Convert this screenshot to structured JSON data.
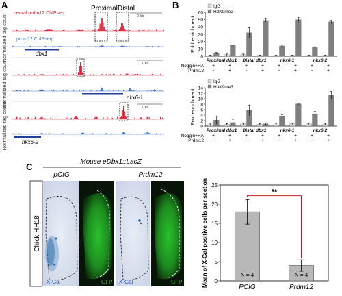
{
  "panels": {
    "A": {
      "label": "A",
      "region_labels": [
        "Proximal",
        "Distal"
      ],
      "yaxis_label": "Normalized tag count",
      "tracks": [
        {
          "legend": [
            "neural prdm12 ChIPseq",
            "prdm12 ChIPseq"
          ],
          "gene": "dbx1",
          "scale": "2 kb"
        },
        {
          "gene": "nkx6-1",
          "scale": "1 kb"
        },
        {
          "gene": "nkx6-2",
          "scale": "1 kb"
        }
      ],
      "colors": {
        "neural": "#e0243c",
        "prdm12": "#3d6fd1",
        "gene": "#203e9c"
      }
    },
    "B": {
      "label": "B",
      "chart_data": [
        {
          "type": "bar",
          "ylabel": "Fold enrichment",
          "ylim": [
            0,
            60
          ],
          "yticks": [
            0,
            10,
            20,
            30,
            40,
            50,
            60
          ],
          "legend": [
            "IgG",
            "H3K9me2"
          ],
          "groups": [
            "Proximal dbx1",
            "Distal dbx1",
            "nkx6-1",
            "nkx6-2"
          ],
          "row_labels": [
            "Noggin+RA",
            "Prdm12"
          ],
          "conditions": [
            [
              "+",
              "-"
            ],
            [
              "+",
              "+"
            ],
            [
              "+",
              "-"
            ],
            [
              "+",
              "+"
            ],
            [
              "+",
              "-"
            ],
            [
              "+",
              "+"
            ],
            [
              "+",
              "-"
            ],
            [
              "+",
              "+"
            ]
          ],
          "series": [
            {
              "name": "IgG",
              "values": [
                1,
                2,
                2,
                1,
                1,
                1,
                1,
                1
              ],
              "errors": [
                0.5,
                1,
                1,
                0.5,
                0.5,
                0.5,
                0.5,
                0.5
              ]
            },
            {
              "name": "H3K9me2",
              "values": [
                4,
                15,
                32,
                49,
                14,
                50,
                12,
                47
              ],
              "errors": [
                1,
                4,
                7,
                2,
                1,
                3,
                1,
                2
              ]
            }
          ],
          "colors": {
            "IgG": "#d9d9d9",
            "H3K9me2": "#7f7f7f"
          }
        },
        {
          "type": "bar",
          "ylabel": "Fold enrichment",
          "ylim": [
            0,
            14
          ],
          "yticks": [
            0,
            2,
            4,
            6,
            8,
            10,
            12,
            14
          ],
          "legend": [
            "IgG",
            "H3K9me3"
          ],
          "groups": [
            "Proximal dbx1",
            "Distal dbx1",
            "nkx6-1",
            "nkx6-2"
          ],
          "row_labels": [
            "Noggin+RA",
            "Prdm12"
          ],
          "conditions": [
            [
              "+",
              "-"
            ],
            [
              "+",
              "+"
            ],
            [
              "+",
              "-"
            ],
            [
              "+",
              "+"
            ],
            [
              "+",
              "-"
            ],
            [
              "+",
              "+"
            ],
            [
              "+",
              "-"
            ],
            [
              "+",
              "+"
            ]
          ],
          "series": [
            {
              "name": "IgG",
              "values": [
                0.5,
                0.6,
                0.8,
                0.6,
                0.5,
                0.8,
                0.8,
                0.6
              ],
              "errors": [
                0.3,
                0.3,
                0.4,
                0.3,
                0.3,
                0.3,
                0.3,
                0.3
              ]
            },
            {
              "name": "H3K9me3",
              "values": [
                2.2,
                1.3,
                5.7,
                0.8,
                3.5,
                8.1,
                4.5,
                11.3
              ],
              "errors": [
                1.5,
                1.2,
                2.0,
                0.4,
                0.6,
                0.3,
                0.9,
                1.3
              ]
            }
          ],
          "colors": {
            "IgG": "#d9d9d9",
            "H3K9me3": "#7f7f7f"
          }
        }
      ]
    },
    "C": {
      "label": "C",
      "title": "Mouse eDbx1::LacZ",
      "conditions": [
        "pCIG",
        "Prdm12"
      ],
      "side_label": "Chick HH18",
      "stain_labels": [
        "X-Gal",
        "GFP"
      ],
      "chart_data": {
        "type": "bar",
        "ylabel": "Mean of X-Gal positive cells per section",
        "ylim": [
          0,
          25
        ],
        "yticks": [
          0,
          5,
          10,
          15,
          20,
          25
        ],
        "categories": [
          "PCIG",
          "Prdm12"
        ],
        "values": [
          18,
          4
        ],
        "errors": [
          3.2,
          1.5
        ],
        "n_labels": [
          "N = 4",
          "N = 4"
        ],
        "significance": "**",
        "bar_color": "#b8b8b8",
        "sig_color": "#c00000"
      }
    }
  }
}
